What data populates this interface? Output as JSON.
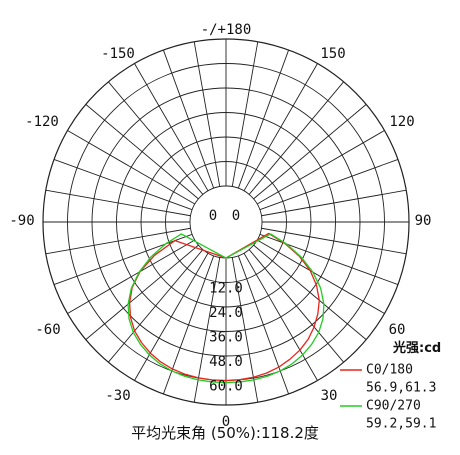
{
  "chart_data": {
    "type": "polar",
    "angle_labels": [
      {
        "deg": 180,
        "text": "-/+180"
      },
      {
        "deg": -150,
        "text": "-150"
      },
      {
        "deg": 150,
        "text": "150"
      },
      {
        "deg": -120,
        "text": "-120"
      },
      {
        "deg": 120,
        "text": "120"
      },
      {
        "deg": -90,
        "text": "-90"
      },
      {
        "deg": 90,
        "text": "90"
      },
      {
        "deg": -60,
        "text": "-60"
      },
      {
        "deg": 60,
        "text": "60"
      },
      {
        "deg": -30,
        "text": "-30"
      },
      {
        "deg": 30,
        "text": "30"
      },
      {
        "deg": 0,
        "text": "0"
      }
    ],
    "center_labels": [
      "0",
      "0"
    ],
    "rings": [
      {
        "value": 12,
        "text": "12.0"
      },
      {
        "value": 24,
        "text": "24.0"
      },
      {
        "value": 36,
        "text": "36.0"
      },
      {
        "value": 48,
        "text": "48.0"
      },
      {
        "value": 60,
        "text": "60.0"
      }
    ],
    "rmax": 72,
    "legend_title": "光强:cd",
    "series": [
      {
        "name": "C0/180",
        "color": "#e8241c",
        "beam_angles": "56.9,61.3",
        "points": [
          [
            -70,
            9.0
          ],
          [
            -65,
            21.0
          ],
          [
            -60,
            31.0
          ],
          [
            -55,
            38.5
          ],
          [
            -50,
            44.0
          ],
          [
            -45,
            48.5
          ],
          [
            -40,
            52.0
          ],
          [
            -35,
            54.5
          ],
          [
            -30,
            56.5
          ],
          [
            -25,
            58.0
          ],
          [
            -20,
            59.0
          ],
          [
            -15,
            59.6
          ],
          [
            -10,
            59.9
          ],
          [
            -5,
            60.0
          ],
          [
            0,
            60.0
          ],
          [
            5,
            59.9
          ],
          [
            10,
            59.6
          ],
          [
            15,
            59.0
          ],
          [
            20,
            58.0
          ],
          [
            25,
            56.5
          ],
          [
            30,
            54.8
          ],
          [
            35,
            52.5
          ],
          [
            40,
            49.5
          ],
          [
            45,
            46.0
          ],
          [
            50,
            42.0
          ],
          [
            55,
            36.5
          ],
          [
            60,
            30.0
          ],
          [
            65,
            22.0
          ],
          [
            70,
            13.0
          ],
          [
            75,
            4.0
          ]
        ]
      },
      {
        "name": "C90/270",
        "color": "#22cc22",
        "beam_angles": "59.2,59.1",
        "points": [
          [
            -75,
            5.0
          ],
          [
            -70,
            14.0
          ],
          [
            -65,
            23.0
          ],
          [
            -60,
            31.5
          ],
          [
            -55,
            39.0
          ],
          [
            -50,
            45.0
          ],
          [
            -45,
            49.5
          ],
          [
            -40,
            53.0
          ],
          [
            -35,
            55.5
          ],
          [
            -30,
            57.5
          ],
          [
            -25,
            59.0
          ],
          [
            -20,
            60.0
          ],
          [
            -15,
            60.6
          ],
          [
            -10,
            60.9
          ],
          [
            -5,
            61.0
          ],
          [
            0,
            61.0
          ],
          [
            5,
            61.0
          ],
          [
            10,
            60.9
          ],
          [
            15,
            60.6
          ],
          [
            20,
            60.0
          ],
          [
            25,
            59.0
          ],
          [
            30,
            57.5
          ],
          [
            35,
            55.5
          ],
          [
            40,
            53.0
          ],
          [
            45,
            49.5
          ],
          [
            50,
            45.0
          ],
          [
            55,
            39.0
          ],
          [
            60,
            31.5
          ],
          [
            65,
            23.0
          ],
          [
            70,
            14.0
          ],
          [
            75,
            5.0
          ]
        ]
      }
    ],
    "footer": "平均光束角 (50%):118.2度"
  }
}
